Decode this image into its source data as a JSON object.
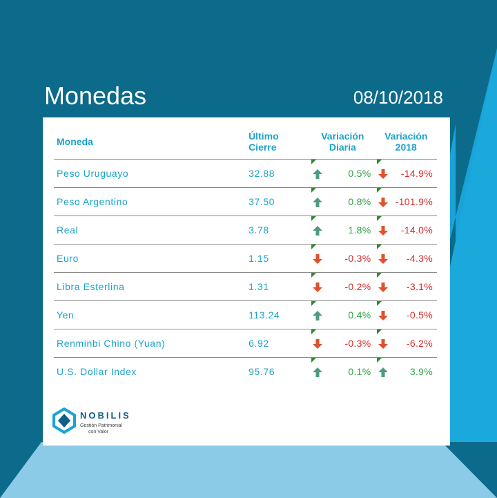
{
  "header": {
    "title": "Monedas",
    "date": "08/10/2018"
  },
  "columns": {
    "currency": "Moneda",
    "close": "Último Cierre",
    "daily": "Variación Diaria",
    "year": "Variación 2018"
  },
  "rows": [
    {
      "name": "Peso Uruguayo",
      "close": "32.88",
      "daily": "0.5%",
      "daily_dir": "up",
      "year": "-14.9%",
      "year_dir": "down"
    },
    {
      "name": "Peso Argentino",
      "close": "37.50",
      "daily": "0.8%",
      "daily_dir": "up",
      "year": "-101.9%",
      "year_dir": "down"
    },
    {
      "name": "Real",
      "close": "3.78",
      "daily": "1.8%",
      "daily_dir": "up",
      "year": "-14.0%",
      "year_dir": "down"
    },
    {
      "name": "Euro",
      "close": "1.15",
      "daily": "-0.3%",
      "daily_dir": "down",
      "year": "-4.3%",
      "year_dir": "down"
    },
    {
      "name": "Libra Esterlina",
      "close": "1.31",
      "daily": "-0.2%",
      "daily_dir": "down",
      "year": "-3.1%",
      "year_dir": "down"
    },
    {
      "name": "Yen",
      "close": "113.24",
      "daily": "0.4%",
      "daily_dir": "up",
      "year": "-0.5%",
      "year_dir": "down"
    },
    {
      "name": "Renminbi Chino (Yuan)",
      "close": "6.92",
      "daily": "-0.3%",
      "daily_dir": "down",
      "year": "-6.2%",
      "year_dir": "down"
    },
    {
      "name": "U.S. Dollar Index",
      "close": "95.76",
      "daily": "0.1%",
      "daily_dir": "up",
      "year": "3.9%",
      "year_dir": "up"
    }
  ],
  "logo": {
    "name": "NOBILIS",
    "tagline_1": "Gestión Patrimonial",
    "tagline_2": "con Valor"
  },
  "colors": {
    "up": "#4f9a84",
    "down": "#e0522b",
    "positive_text": "#2ea043",
    "negative_text": "#d62b2b",
    "accent": "#1aa3c9"
  },
  "icons": {
    "up": "arrow-up-icon",
    "down": "arrow-down-icon"
  }
}
